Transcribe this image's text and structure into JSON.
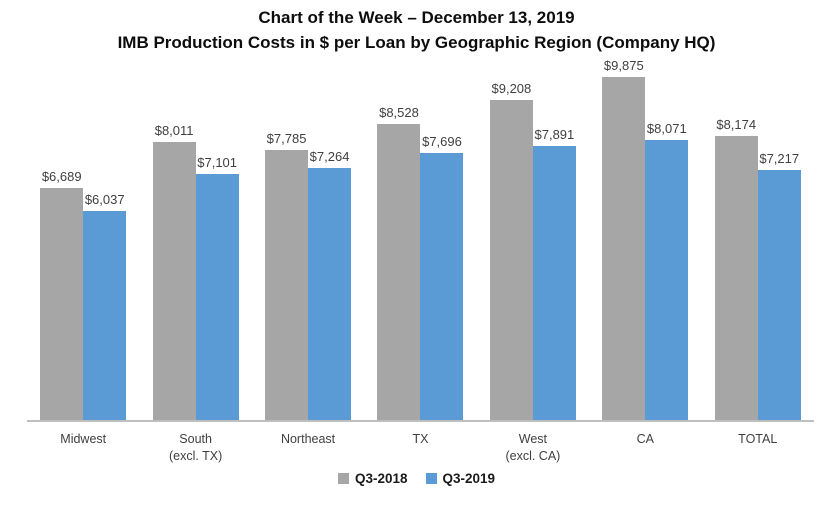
{
  "title": {
    "line1": "Chart of the Week – December 13, 2019",
    "line2": "IMB Production Costs in $ per Loan by Geographic Region (Company HQ)"
  },
  "legend": {
    "items": [
      {
        "label": "Q3-2018",
        "color": "#a6a6a6"
      },
      {
        "label": "Q3-2019",
        "color": "#5b9bd5"
      }
    ],
    "position": "bottom"
  },
  "colors": {
    "q3_2018_bar": "#a6a6a6",
    "q3_2019_bar": "#5b9bd5",
    "axis_line": "#bfbfbf",
    "label_text": "#404040",
    "title_text": "#0d0d0d"
  },
  "chart_data": {
    "type": "bar",
    "title": "Chart of the Week – December 13, 2019",
    "subtitle": "IMB Production Costs in $ per Loan by Geographic Region (Company HQ)",
    "categories": [
      "Midwest",
      "South (excl. TX)",
      "Northeast",
      "TX",
      "West (excl. CA)",
      "CA",
      "TOTAL"
    ],
    "category_lines": [
      [
        "Midwest"
      ],
      [
        "South",
        "(excl. TX)"
      ],
      [
        "Northeast"
      ],
      [
        "TX"
      ],
      [
        "West",
        "(excl. CA)"
      ],
      [
        "CA"
      ],
      [
        "TOTAL"
      ]
    ],
    "series": [
      {
        "name": "Q3-2018",
        "color": "#a6a6a6",
        "values": [
          6689,
          8011,
          7785,
          8528,
          9208,
          9875,
          8174
        ],
        "labels": [
          "$6,689",
          "$8,011",
          "$7,785",
          "$8,528",
          "$9,208",
          "$9,875",
          "$8,174"
        ]
      },
      {
        "name": "Q3-2019",
        "color": "#5b9bd5",
        "values": [
          6037,
          7101,
          7264,
          7696,
          7891,
          8071,
          7217
        ],
        "labels": [
          "$6,037",
          "$7,101",
          "$7,264",
          "$7,696",
          "$7,891",
          "$8,071",
          "$7,217"
        ]
      }
    ],
    "xlabel": "",
    "ylabel": "",
    "ylim": [
      0,
      10500
    ],
    "y_axis_visible": false,
    "grid": false,
    "data_labels": "outside-end",
    "legend_position": "bottom"
  }
}
